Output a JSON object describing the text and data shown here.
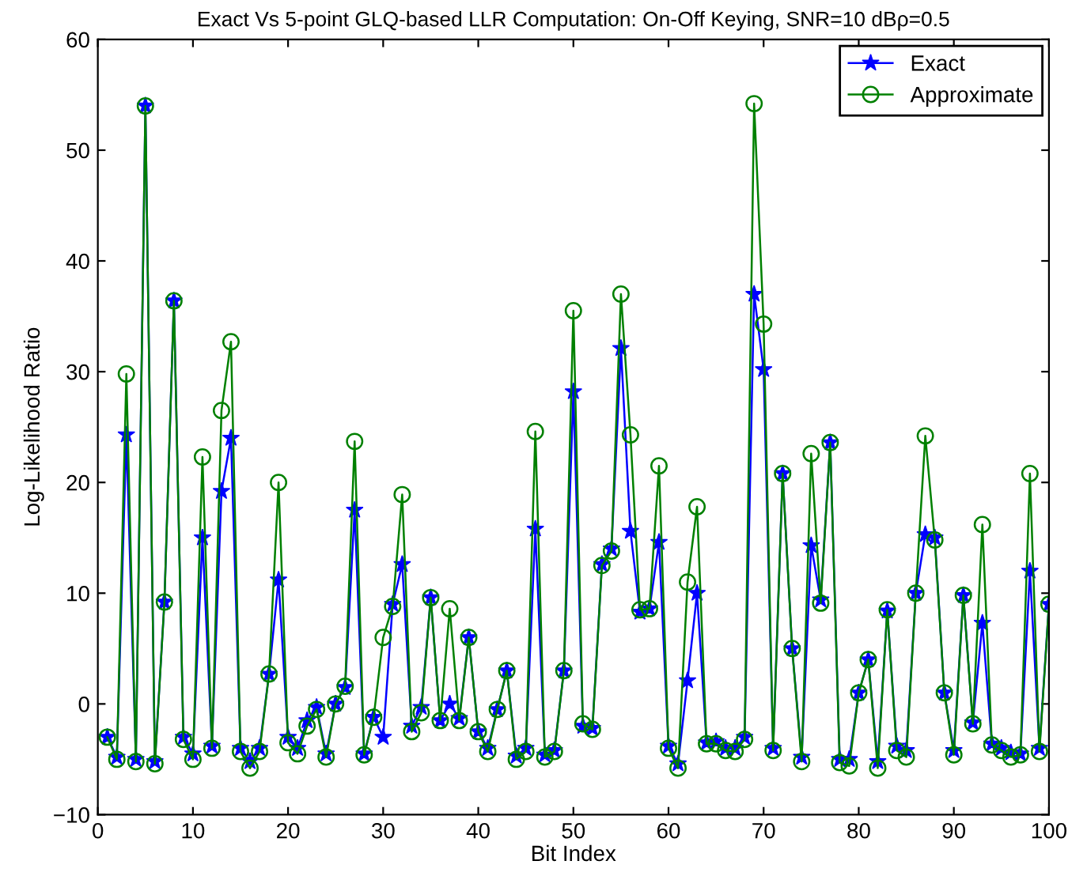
{
  "chart_data": {
    "type": "line",
    "title": "Exact Vs 5-point GLQ-based LLR Computation: On-Off Keying, SNR=10 dBρ=0.5",
    "xlabel": "Bit Index",
    "ylabel": "Log-Likelihood Ratio",
    "x": [
      1,
      2,
      3,
      4,
      5,
      6,
      7,
      8,
      9,
      10,
      11,
      12,
      13,
      14,
      15,
      16,
      17,
      18,
      19,
      20,
      21,
      22,
      23,
      24,
      25,
      26,
      27,
      28,
      29,
      30,
      31,
      32,
      33,
      34,
      35,
      36,
      37,
      38,
      39,
      40,
      41,
      42,
      43,
      44,
      45,
      46,
      47,
      48,
      49,
      50,
      51,
      52,
      53,
      54,
      55,
      56,
      57,
      58,
      59,
      60,
      61,
      62,
      63,
      64,
      65,
      66,
      67,
      68,
      69,
      70,
      71,
      72,
      73,
      74,
      75,
      76,
      77,
      78,
      79,
      80,
      81,
      82,
      83,
      84,
      85,
      86,
      87,
      88,
      89,
      90,
      91,
      92,
      93,
      94,
      95,
      96,
      97,
      98,
      99,
      100
    ],
    "series": [
      {
        "name": "Exact",
        "color": "#0000ff",
        "marker": "star",
        "values": [
          -3,
          -4.8,
          24.3,
          -5,
          54,
          -5.2,
          9.2,
          36.4,
          -3,
          -4.5,
          15,
          -3.8,
          19.2,
          24,
          -4,
          -5.2,
          -4,
          2.7,
          11.2,
          -3,
          -4,
          -1.5,
          -0.3,
          -4.5,
          0,
          1.5,
          17.5,
          -4.5,
          -1.2,
          -3,
          9,
          12.6,
          -2,
          -0.3,
          9.6,
          -1.5,
          0,
          -1.3,
          6,
          -2.5,
          -4,
          -0.5,
          3,
          -4.7,
          -4,
          15.8,
          -4.6,
          -4.2,
          3,
          28.2,
          -2,
          -2.2,
          12.6,
          14,
          32.1,
          15.6,
          8.3,
          8.6,
          14.6,
          -3.8,
          -5.4,
          2.1,
          10,
          -3.5,
          -3.4,
          -4,
          -4,
          -3,
          37,
          30.2,
          -4,
          20.8,
          5,
          -4.8,
          14.3,
          9.4,
          23.6,
          -5,
          -5,
          1,
          4,
          -5.2,
          8.4,
          -3.8,
          -4.2,
          10,
          15.3,
          15,
          1,
          -4.2,
          9.8,
          -1.7,
          7.3,
          -3.6,
          -4,
          -4.4,
          -4.5,
          12,
          -4,
          9
        ]
      },
      {
        "name": "Approximate",
        "color": "#008000",
        "marker": "circle",
        "values": [
          -3,
          -5,
          29.8,
          -5.2,
          54,
          -5.4,
          9.2,
          36.4,
          -3.2,
          -5,
          22.3,
          -4,
          26.5,
          32.7,
          -4.3,
          -5.8,
          -4.3,
          2.7,
          20,
          -3.5,
          -4.5,
          -2,
          -0.5,
          -4.8,
          0,
          1.6,
          23.7,
          -4.6,
          -1.2,
          6,
          8.8,
          18.9,
          -2.5,
          -0.8,
          9.6,
          -1.5,
          8.6,
          -1.5,
          6,
          -2.5,
          -4.3,
          -0.5,
          3,
          -5,
          -4.3,
          24.6,
          -4.8,
          -4.3,
          3,
          35.5,
          -1.8,
          -2.3,
          12.5,
          13.8,
          37,
          24.3,
          8.5,
          8.6,
          21.5,
          -4,
          -5.8,
          11,
          17.8,
          -3.6,
          -3.6,
          -4.2,
          -4.3,
          -3.2,
          54.2,
          34.3,
          -4.2,
          20.8,
          5,
          -5.2,
          22.6,
          9.1,
          23.6,
          -5.3,
          -5.6,
          1,
          4,
          -5.8,
          8.5,
          -4.2,
          -4.8,
          10,
          24.2,
          14.8,
          1,
          -4.6,
          9.8,
          -1.8,
          16.2,
          -3.7,
          -4.2,
          -4.8,
          -4.6,
          20.8,
          -4.3,
          9
        ]
      }
    ],
    "xlim": [
      0,
      100
    ],
    "xticks": [
      0,
      10,
      20,
      30,
      40,
      50,
      60,
      70,
      80,
      90,
      100
    ],
    "ylim": [
      -10,
      60
    ],
    "yticks": [
      {
        "value": -10,
        "label": "−10"
      },
      0,
      10,
      20,
      30,
      40,
      50,
      60
    ],
    "grid": false,
    "legend": "top right",
    "line_style": "solid"
  }
}
